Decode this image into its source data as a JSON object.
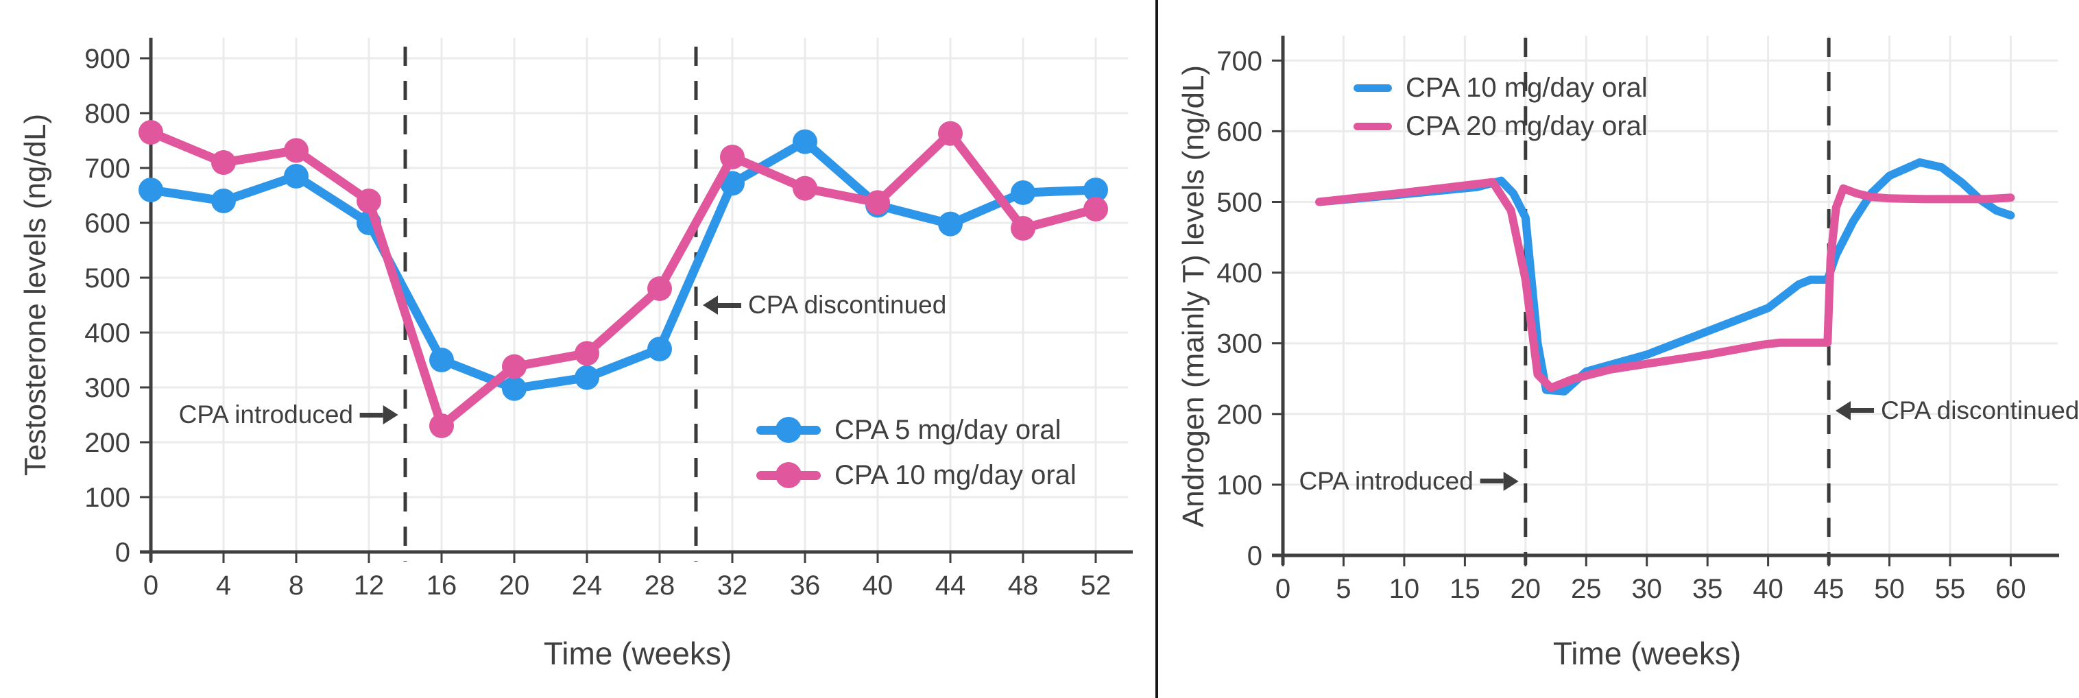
{
  "chart_data": [
    {
      "type": "line",
      "panel": "left",
      "title": "",
      "xlabel": "Time (weeks)",
      "ylabel": "Testosterone levels (ng/dL)",
      "xlim": [
        0,
        54
      ],
      "ylim": [
        0,
        937
      ],
      "xticks": [
        0,
        4,
        8,
        12,
        16,
        20,
        24,
        28,
        32,
        36,
        40,
        44,
        48,
        52
      ],
      "yticks": [
        0,
        100,
        200,
        300,
        400,
        500,
        600,
        700,
        800,
        900
      ],
      "grid": true,
      "markers": true,
      "legend_position": "inside-lower-right",
      "x": [
        0,
        4,
        8,
        12,
        16,
        20,
        24,
        28,
        32,
        36,
        40,
        44,
        48,
        52
      ],
      "series": [
        {
          "name": "CPA 5 mg/day oral",
          "color": "#2e96e8",
          "values": [
            660,
            640,
            685,
            600,
            350,
            298,
            318,
            370,
            672,
            748,
            632,
            598,
            655,
            660
          ]
        },
        {
          "name": "CPA 10 mg/day oral",
          "color": "#e0579d",
          "values": [
            765,
            710,
            732,
            640,
            230,
            338,
            362,
            480,
            720,
            663,
            637,
            763,
            590,
            625
          ]
        }
      ],
      "vlines": [
        {
          "x": 14
        },
        {
          "x": 30
        }
      ],
      "annotations": [
        {
          "text": "CPA introduced",
          "arrow": "right",
          "points_to_x": 14,
          "y_value": 250
        },
        {
          "text": "CPA discontinued",
          "arrow": "left",
          "points_to_x": 30,
          "y_value": 450
        }
      ]
    },
    {
      "type": "line",
      "panel": "right",
      "title": "",
      "xlabel": "Time (weeks)",
      "ylabel": "Androgen (mainly T) levels (ng/dL)",
      "xlim": [
        0,
        62
      ],
      "ylim": [
        0,
        735
      ],
      "xticks": [
        0,
        5,
        10,
        15,
        20,
        25,
        30,
        35,
        40,
        45,
        50,
        55,
        60
      ],
      "yticks": [
        0,
        100,
        200,
        300,
        400,
        500,
        600,
        700
      ],
      "grid": true,
      "markers": false,
      "legend_position": "inside-top-left",
      "series": [
        {
          "name": "CPA 10 mg/day oral",
          "color": "#2e96e8",
          "points": [
            [
              3,
              500
            ],
            [
              10,
              511
            ],
            [
              16,
              521
            ],
            [
              18,
              530
            ],
            [
              19,
              512
            ],
            [
              20,
              478
            ],
            [
              21,
              300
            ],
            [
              21.7,
              234
            ],
            [
              23.2,
              232
            ],
            [
              25,
              260
            ],
            [
              30,
              284
            ],
            [
              35,
              317
            ],
            [
              40,
              350
            ],
            [
              42.5,
              383
            ],
            [
              43.5,
              390
            ],
            [
              44.9,
              390
            ],
            [
              45.6,
              425
            ],
            [
              47,
              472
            ],
            [
              48.5,
              512
            ],
            [
              50,
              537
            ],
            [
              52.5,
              556
            ],
            [
              54.3,
              549
            ],
            [
              56,
              527
            ],
            [
              57.5,
              503
            ],
            [
              58.8,
              488
            ],
            [
              60,
              481
            ]
          ]
        },
        {
          "name": "CPA 20 mg/day oral",
          "color": "#e0579d",
          "points": [
            [
              3,
              500
            ],
            [
              10,
              513
            ],
            [
              17.3,
              528
            ],
            [
              18.8,
              488
            ],
            [
              20,
              390
            ],
            [
              21,
              256
            ],
            [
              22.1,
              237
            ],
            [
              24,
              250
            ],
            [
              27,
              263
            ],
            [
              30,
              271
            ],
            [
              35,
              284
            ],
            [
              39.5,
              298
            ],
            [
              41,
              301
            ],
            [
              44.9,
              301
            ],
            [
              45.15,
              420
            ],
            [
              45.6,
              492
            ],
            [
              46.2,
              519
            ],
            [
              47.3,
              512
            ],
            [
              48.5,
              507
            ],
            [
              50,
              505
            ],
            [
              53,
              504
            ],
            [
              56,
              504
            ],
            [
              58,
              504
            ],
            [
              60,
              506
            ]
          ]
        }
      ],
      "vlines": [
        {
          "x": 20
        },
        {
          "x": 45
        }
      ],
      "annotations": [
        {
          "text": "CPA introduced",
          "arrow": "right",
          "points_to_x": 20,
          "y_value": 105
        },
        {
          "text": "CPA discontinued",
          "arrow": "left",
          "points_to_x": 45,
          "y_value": 205
        }
      ]
    }
  ]
}
